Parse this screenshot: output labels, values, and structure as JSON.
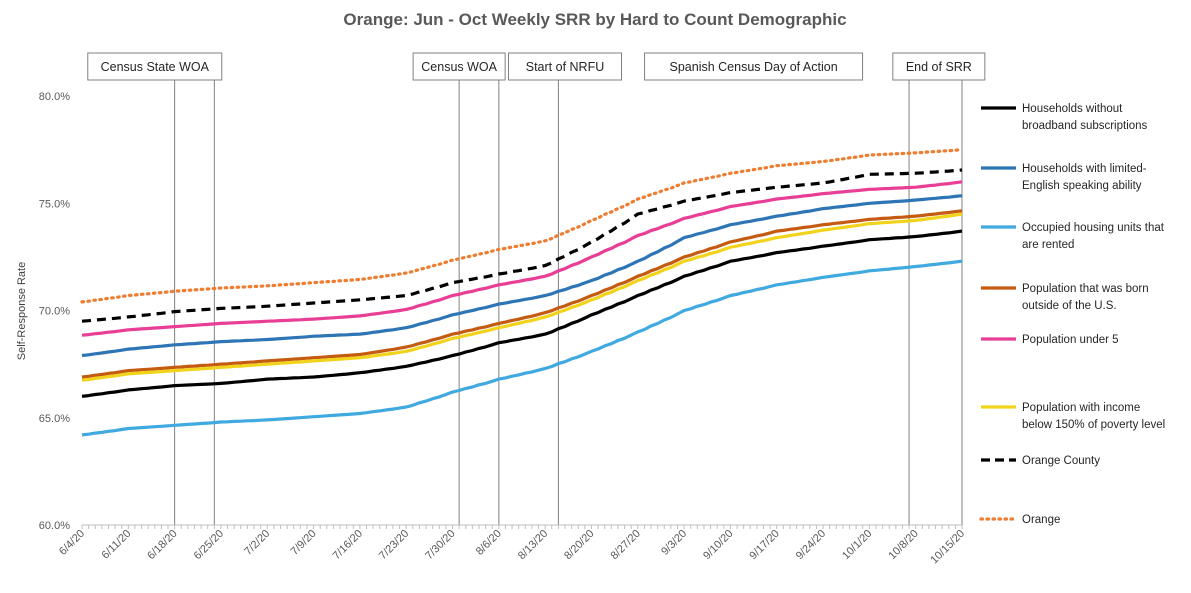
{
  "chart_data": {
    "type": "line",
    "title": "Orange: Jun - Oct Weekly SRR by Hard to Count Demographic",
    "ylabel": "Self-Response Rate",
    "xlabel": "",
    "ylim": [
      60,
      80
    ],
    "yticks": [
      "60.0%",
      "65.0%",
      "70.0%",
      "75.0%",
      "80.0%"
    ],
    "ytick_values": [
      60,
      65,
      70,
      75,
      80
    ],
    "days": 133,
    "x_ticks": [
      {
        "label": "6/4/20",
        "day": 0
      },
      {
        "label": "6/11/20",
        "day": 7
      },
      {
        "label": "6/18/20",
        "day": 14
      },
      {
        "label": "6/25/20",
        "day": 21
      },
      {
        "label": "7/2/20",
        "day": 28
      },
      {
        "label": "7/9/20",
        "day": 35
      },
      {
        "label": "7/16/20",
        "day": 42
      },
      {
        "label": "7/23/20",
        "day": 49
      },
      {
        "label": "7/30/20",
        "day": 56
      },
      {
        "label": "8/6/20",
        "day": 63
      },
      {
        "label": "8/13/20",
        "day": 70
      },
      {
        "label": "8/20/20",
        "day": 77
      },
      {
        "label": "8/27/20",
        "day": 84
      },
      {
        "label": "9/3/20",
        "day": 91
      },
      {
        "label": "9/10/20",
        "day": 98
      },
      {
        "label": "9/17/20",
        "day": 105
      },
      {
        "label": "9/24/20",
        "day": 112
      },
      {
        "label": "10/1/20",
        "day": 119
      },
      {
        "label": "10/8/20",
        "day": 126
      },
      {
        "label": "10/15/20",
        "day": 133
      }
    ],
    "vlines": [
      14,
      20,
      57,
      63,
      72,
      125,
      133
    ],
    "annotations": [
      {
        "label": "Census State WOA",
        "day": 11
      },
      {
        "label": "Census WOA",
        "day": 57
      },
      {
        "label": "Start of NRFU",
        "day": 73
      },
      {
        "label": "Spanish Census Day of Action",
        "day": 101.5
      },
      {
        "label": "End of SRR",
        "day": 129.5
      }
    ],
    "series": [
      {
        "name": "Households without broadband subscriptions",
        "color": "#000000",
        "style": "solid",
        "points": [
          [
            0,
            66.0
          ],
          [
            7,
            66.3
          ],
          [
            14,
            66.5
          ],
          [
            21,
            66.6
          ],
          [
            28,
            66.8
          ],
          [
            35,
            66.9
          ],
          [
            42,
            67.1
          ],
          [
            49,
            67.4
          ],
          [
            56,
            67.9
          ],
          [
            63,
            68.5
          ],
          [
            70,
            68.9
          ],
          [
            77,
            69.8
          ],
          [
            84,
            70.7
          ],
          [
            91,
            71.6
          ],
          [
            98,
            72.3
          ],
          [
            105,
            72.7
          ],
          [
            112,
            73.0
          ],
          [
            119,
            73.3
          ],
          [
            126,
            73.45
          ],
          [
            133,
            73.7
          ]
        ]
      },
      {
        "name": "Households with limited-English speaking ability",
        "color": "#2E75B6",
        "style": "solid",
        "points": [
          [
            0,
            67.9
          ],
          [
            7,
            68.2
          ],
          [
            14,
            68.4
          ],
          [
            21,
            68.55
          ],
          [
            28,
            68.65
          ],
          [
            35,
            68.8
          ],
          [
            42,
            68.9
          ],
          [
            49,
            69.2
          ],
          [
            56,
            69.8
          ],
          [
            63,
            70.3
          ],
          [
            70,
            70.7
          ],
          [
            77,
            71.4
          ],
          [
            84,
            72.3
          ],
          [
            91,
            73.4
          ],
          [
            98,
            74.0
          ],
          [
            105,
            74.4
          ],
          [
            112,
            74.75
          ],
          [
            119,
            75.0
          ],
          [
            126,
            75.15
          ],
          [
            133,
            75.35
          ]
        ]
      },
      {
        "name": "Occupied housing units that are rented",
        "color": "#3FA9E0",
        "style": "solid",
        "points": [
          [
            0,
            64.2
          ],
          [
            7,
            64.5
          ],
          [
            14,
            64.65
          ],
          [
            21,
            64.8
          ],
          [
            28,
            64.9
          ],
          [
            35,
            65.05
          ],
          [
            42,
            65.2
          ],
          [
            49,
            65.5
          ],
          [
            56,
            66.2
          ],
          [
            63,
            66.8
          ],
          [
            70,
            67.3
          ],
          [
            77,
            68.1
          ],
          [
            84,
            69.0
          ],
          [
            91,
            70.0
          ],
          [
            98,
            70.7
          ],
          [
            105,
            71.2
          ],
          [
            112,
            71.55
          ],
          [
            119,
            71.85
          ],
          [
            126,
            72.05
          ],
          [
            133,
            72.3
          ]
        ]
      },
      {
        "name": "Population that was born outside of the U.S.",
        "color": "#C55A11",
        "style": "solid",
        "points": [
          [
            0,
            66.9
          ],
          [
            7,
            67.2
          ],
          [
            14,
            67.35
          ],
          [
            21,
            67.5
          ],
          [
            28,
            67.65
          ],
          [
            35,
            67.8
          ],
          [
            42,
            67.95
          ],
          [
            49,
            68.3
          ],
          [
            56,
            68.9
          ],
          [
            63,
            69.4
          ],
          [
            70,
            69.9
          ],
          [
            77,
            70.7
          ],
          [
            84,
            71.6
          ],
          [
            91,
            72.5
          ],
          [
            98,
            73.2
          ],
          [
            105,
            73.7
          ],
          [
            112,
            74.0
          ],
          [
            119,
            74.25
          ],
          [
            126,
            74.4
          ],
          [
            133,
            74.65
          ]
        ]
      },
      {
        "name": "Population under 5",
        "color": "#E83E96",
        "style": "solid",
        "points": [
          [
            0,
            68.85
          ],
          [
            7,
            69.1
          ],
          [
            14,
            69.25
          ],
          [
            21,
            69.4
          ],
          [
            28,
            69.5
          ],
          [
            35,
            69.6
          ],
          [
            42,
            69.75
          ],
          [
            49,
            70.05
          ],
          [
            56,
            70.7
          ],
          [
            63,
            71.2
          ],
          [
            70,
            71.6
          ],
          [
            77,
            72.5
          ],
          [
            84,
            73.5
          ],
          [
            91,
            74.3
          ],
          [
            98,
            74.85
          ],
          [
            105,
            75.2
          ],
          [
            112,
            75.45
          ],
          [
            119,
            75.65
          ],
          [
            126,
            75.75
          ],
          [
            133,
            76.0
          ]
        ]
      },
      {
        "name": "Population with income below 150% of poverty level",
        "color": "#F2D31C",
        "style": "solid",
        "points": [
          [
            0,
            66.75
          ],
          [
            7,
            67.05
          ],
          [
            14,
            67.2
          ],
          [
            21,
            67.35
          ],
          [
            28,
            67.5
          ],
          [
            35,
            67.65
          ],
          [
            42,
            67.8
          ],
          [
            49,
            68.1
          ],
          [
            56,
            68.7
          ],
          [
            63,
            69.2
          ],
          [
            70,
            69.7
          ],
          [
            77,
            70.5
          ],
          [
            84,
            71.4
          ],
          [
            91,
            72.3
          ],
          [
            98,
            72.95
          ],
          [
            105,
            73.4
          ],
          [
            112,
            73.75
          ],
          [
            119,
            74.05
          ],
          [
            126,
            74.2
          ],
          [
            133,
            74.5
          ]
        ]
      },
      {
        "name": "Orange County",
        "color": "#000000",
        "style": "dashed",
        "points": [
          [
            0,
            69.5
          ],
          [
            7,
            69.7
          ],
          [
            14,
            69.95
          ],
          [
            21,
            70.1
          ],
          [
            28,
            70.2
          ],
          [
            35,
            70.35
          ],
          [
            42,
            70.5
          ],
          [
            49,
            70.7
          ],
          [
            56,
            71.3
          ],
          [
            63,
            71.7
          ],
          [
            70,
            72.1
          ],
          [
            77,
            73.2
          ],
          [
            84,
            74.5
          ],
          [
            91,
            75.1
          ],
          [
            98,
            75.5
          ],
          [
            105,
            75.75
          ],
          [
            112,
            75.95
          ],
          [
            119,
            76.35
          ],
          [
            126,
            76.4
          ],
          [
            133,
            76.55
          ]
        ]
      },
      {
        "name": "Orange",
        "color": "#ED7D31",
        "style": "dotted",
        "points": [
          [
            0,
            70.4
          ],
          [
            7,
            70.7
          ],
          [
            14,
            70.9
          ],
          [
            21,
            71.05
          ],
          [
            28,
            71.15
          ],
          [
            35,
            71.3
          ],
          [
            42,
            71.45
          ],
          [
            49,
            71.75
          ],
          [
            56,
            72.35
          ],
          [
            63,
            72.85
          ],
          [
            70,
            73.25
          ],
          [
            77,
            74.2
          ],
          [
            84,
            75.2
          ],
          [
            91,
            75.95
          ],
          [
            98,
            76.4
          ],
          [
            105,
            76.75
          ],
          [
            112,
            76.95
          ],
          [
            119,
            77.25
          ],
          [
            126,
            77.35
          ],
          [
            133,
            77.5
          ]
        ]
      }
    ],
    "legend": [
      {
        "lines": [
          "Households without",
          "broadband subscriptions"
        ],
        "color": "#000000",
        "style": "solid"
      },
      {
        "lines": [
          "Households with limited-",
          "English speaking ability"
        ],
        "color": "#2E75B6",
        "style": "solid"
      },
      {
        "lines": [
          "Occupied housing units that",
          "are rented"
        ],
        "color": "#3FA9E0",
        "style": "solid"
      },
      {
        "lines": [
          "Population that was born",
          "outside of the U.S."
        ],
        "color": "#C55A11",
        "style": "solid"
      },
      {
        "lines": [
          "Population under 5"
        ],
        "color": "#E83E96",
        "style": "solid"
      },
      {
        "lines": [
          "Population with income",
          "below 150% of poverty level"
        ],
        "color": "#F2D31C",
        "style": "solid"
      },
      {
        "lines": [
          "Orange County"
        ],
        "color": "#000000",
        "style": "dashed"
      },
      {
        "lines": [
          "Orange"
        ],
        "color": "#ED7D31",
        "style": "dotted"
      }
    ],
    "legend_placement": "right",
    "grid": false
  }
}
